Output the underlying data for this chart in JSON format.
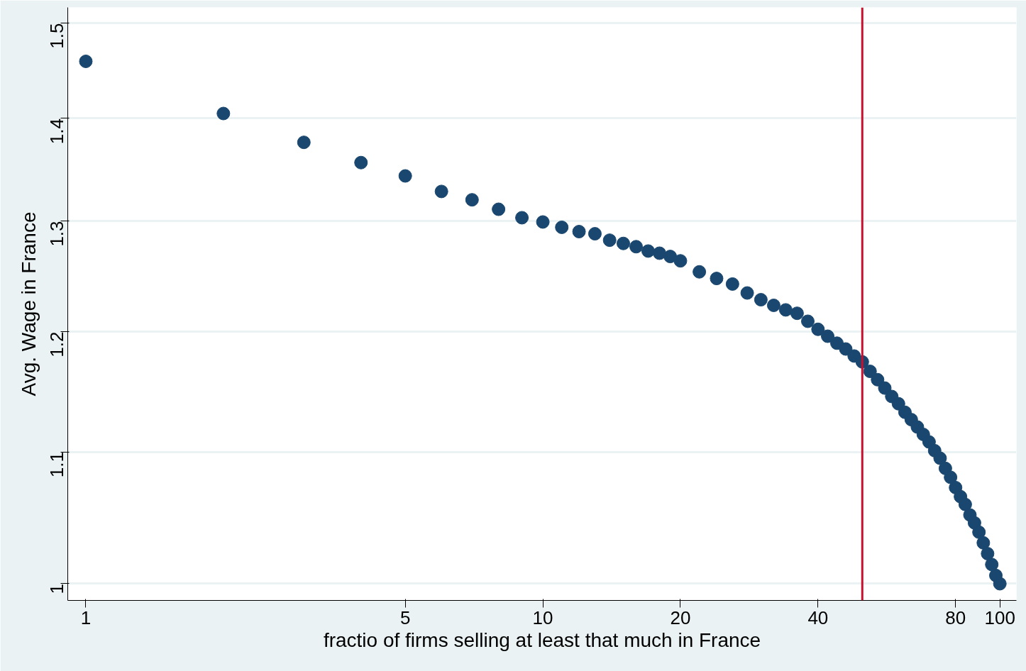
{
  "chart_data": {
    "type": "scatter",
    "xlabel": "fractio of firms selling at least that much in France",
    "ylabel": "Avg. Wage in France",
    "log": "xy",
    "xlim": [
      0.913,
      108.7
    ],
    "ylim": [
      0.988,
      1.517
    ],
    "xticks": [
      1,
      5,
      10,
      20,
      40,
      80,
      100
    ],
    "yticks": [
      1,
      1.1,
      1.2,
      1.3,
      1.4,
      1.5
    ],
    "grid": "y",
    "marker": "circle",
    "ref_lines": [
      {
        "axis": "x",
        "value": 50,
        "color": "#c8102e"
      }
    ],
    "series": [
      {
        "color": "#1a476f",
        "x": [
          1,
          2,
          3,
          4,
          5,
          6,
          7,
          8,
          9,
          10,
          11,
          12,
          13,
          14,
          15,
          16,
          17,
          18,
          19,
          20,
          22,
          24,
          26,
          28,
          30,
          32,
          34,
          36,
          38,
          40,
          42,
          44,
          46,
          48,
          50,
          52,
          54,
          56,
          58,
          60,
          62,
          64,
          66,
          68,
          70,
          72,
          74,
          76,
          78,
          80,
          82,
          84,
          86,
          88,
          90,
          92,
          94,
          96,
          98,
          100
        ],
        "values": [
          1.459,
          1.405,
          1.376,
          1.356,
          1.343,
          1.328,
          1.32,
          1.311,
          1.303,
          1.299,
          1.294,
          1.29,
          1.288,
          1.282,
          1.279,
          1.276,
          1.272,
          1.27,
          1.267,
          1.263,
          1.253,
          1.247,
          1.242,
          1.234,
          1.228,
          1.223,
          1.219,
          1.216,
          1.209,
          1.202,
          1.196,
          1.19,
          1.185,
          1.179,
          1.174,
          1.166,
          1.159,
          1.152,
          1.145,
          1.139,
          1.132,
          1.126,
          1.12,
          1.114,
          1.108,
          1.101,
          1.095,
          1.087,
          1.08,
          1.072,
          1.065,
          1.059,
          1.051,
          1.045,
          1.038,
          1.03,
          1.022,
          1.014,
          1.006,
          1.0
        ]
      }
    ]
  }
}
